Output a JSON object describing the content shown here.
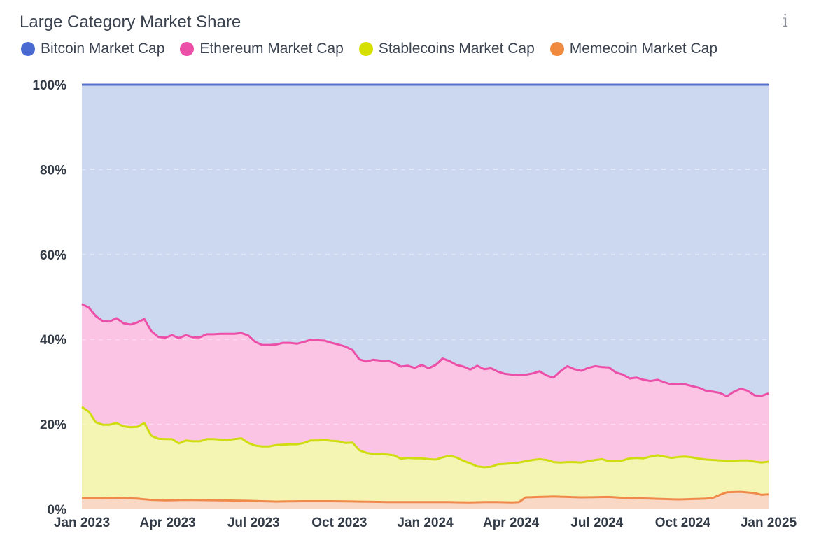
{
  "header": {
    "title": "Large Category Market Share",
    "info_icon": "info-icon",
    "info_glyph": "i"
  },
  "colors": {
    "bitcoin_line": "#5470c6",
    "bitcoin_fill": "#ccd8f0",
    "ethereum_line": "#ec4fa7",
    "ethereum_fill": "#fcc4e4",
    "stablecoins_line": "#cfdc10",
    "stablecoins_fill": "#f4f5b3",
    "memecoin_line": "#f08a4b",
    "memecoin_fill": "#f9d8c6",
    "legend_bitcoin": "#4a6ad1",
    "legend_ethereum": "#ec4fa7",
    "legend_stablecoins": "#d6e000",
    "legend_memecoin": "#f08a3e"
  },
  "chart_data": {
    "type": "area",
    "stacked": true,
    "normalized": true,
    "title": "Large Category Market Share",
    "x_start": "Jan 2023",
    "x_end": "Jan 2025",
    "x_ticks": [
      "Jan 2023",
      "Apr 2023",
      "Jul 2023",
      "Oct 2023",
      "Jan 2024",
      "Apr 2024",
      "Jul 2024",
      "Oct 2024",
      "Jan 2025"
    ],
    "y_ticks": [
      "0%",
      "20%",
      "40%",
      "60%",
      "80%",
      "100%"
    ],
    "ylim": [
      0,
      100
    ],
    "legend_position": "top-left",
    "series": [
      {
        "name": "Bitcoin Market Cap",
        "key": "bitcoin",
        "note": "top band, cumulative always 100%"
      },
      {
        "name": "Ethereum Market Cap",
        "key": "ethereum",
        "cumulative_top": [
          [
            0,
            48.3
          ],
          [
            1,
            47.5
          ],
          [
            2,
            45.5
          ],
          [
            3,
            44.3
          ],
          [
            4,
            44.2
          ],
          [
            5,
            45.0
          ],
          [
            6,
            43.8
          ],
          [
            7,
            43.5
          ],
          [
            8,
            44.0
          ],
          [
            9,
            44.8
          ],
          [
            10,
            42.0
          ],
          [
            11,
            40.6
          ],
          [
            12,
            40.4
          ],
          [
            13,
            41.0
          ],
          [
            14,
            40.3
          ],
          [
            15,
            41.0
          ],
          [
            16,
            40.5
          ],
          [
            17,
            40.5
          ],
          [
            18,
            41.2
          ],
          [
            19,
            41.2
          ],
          [
            20,
            41.3
          ],
          [
            21,
            41.3
          ],
          [
            22,
            41.3
          ],
          [
            23,
            41.5
          ],
          [
            24,
            40.9
          ],
          [
            25,
            39.4
          ],
          [
            26,
            38.7
          ],
          [
            27,
            38.7
          ],
          [
            28,
            38.8
          ],
          [
            29,
            39.2
          ],
          [
            30,
            39.2
          ],
          [
            31,
            39.0
          ],
          [
            32,
            39.4
          ],
          [
            33,
            39.9
          ],
          [
            34,
            39.8
          ],
          [
            35,
            39.7
          ],
          [
            36,
            39.2
          ],
          [
            37,
            38.8
          ],
          [
            38,
            38.3
          ],
          [
            39,
            37.5
          ],
          [
            40,
            35.3
          ],
          [
            41,
            34.8
          ],
          [
            42,
            35.2
          ],
          [
            43,
            35.0
          ],
          [
            44,
            35.0
          ],
          [
            45,
            34.5
          ],
          [
            46,
            33.6
          ],
          [
            47,
            33.8
          ],
          [
            48,
            33.3
          ],
          [
            49,
            34.0
          ],
          [
            50,
            33.2
          ],
          [
            51,
            34.0
          ],
          [
            52,
            35.5
          ],
          [
            53,
            34.9
          ],
          [
            54,
            34.0
          ],
          [
            55,
            33.6
          ],
          [
            56,
            32.9
          ],
          [
            57,
            33.8
          ],
          [
            58,
            33.0
          ],
          [
            59,
            33.2
          ],
          [
            60,
            32.4
          ],
          [
            61,
            31.9
          ],
          [
            62,
            31.7
          ],
          [
            63,
            31.6
          ],
          [
            64,
            31.7
          ],
          [
            65,
            32.0
          ],
          [
            66,
            32.5
          ],
          [
            67,
            31.5
          ],
          [
            68,
            31.0
          ],
          [
            69,
            32.5
          ],
          [
            70,
            33.7
          ],
          [
            71,
            33.0
          ],
          [
            72,
            32.6
          ],
          [
            73,
            33.3
          ],
          [
            74,
            33.7
          ],
          [
            75,
            33.5
          ],
          [
            76,
            33.4
          ],
          [
            77,
            32.2
          ],
          [
            78,
            31.7
          ],
          [
            79,
            30.8
          ],
          [
            80,
            31.0
          ],
          [
            81,
            30.5
          ],
          [
            82,
            30.2
          ],
          [
            83,
            30.5
          ],
          [
            84,
            29.9
          ],
          [
            85,
            29.4
          ],
          [
            86,
            29.5
          ],
          [
            87,
            29.4
          ],
          [
            88,
            29.0
          ],
          [
            89,
            28.6
          ],
          [
            90,
            27.9
          ],
          [
            91,
            27.7
          ],
          [
            92,
            27.4
          ],
          [
            93,
            26.6
          ],
          [
            94,
            27.7
          ],
          [
            95,
            28.4
          ],
          [
            96,
            27.9
          ],
          [
            97,
            26.8
          ],
          [
            98,
            26.7
          ],
          [
            99,
            27.3
          ]
        ]
      },
      {
        "name": "Stablecoins Market Cap",
        "key": "stablecoins",
        "cumulative_top": [
          [
            0,
            24.1
          ],
          [
            1,
            23.0
          ],
          [
            2,
            20.5
          ],
          [
            3,
            19.9
          ],
          [
            4,
            19.9
          ],
          [
            5,
            20.3
          ],
          [
            6,
            19.5
          ],
          [
            7,
            19.3
          ],
          [
            8,
            19.4
          ],
          [
            9,
            20.3
          ],
          [
            10,
            17.3
          ],
          [
            11,
            16.6
          ],
          [
            12,
            16.5
          ],
          [
            13,
            16.5
          ],
          [
            14,
            15.5
          ],
          [
            15,
            16.2
          ],
          [
            16,
            16.0
          ],
          [
            17,
            16.0
          ],
          [
            18,
            16.5
          ],
          [
            19,
            16.5
          ],
          [
            20,
            16.4
          ],
          [
            21,
            16.3
          ],
          [
            22,
            16.5
          ],
          [
            23,
            16.7
          ],
          [
            24,
            15.6
          ],
          [
            25,
            15.0
          ],
          [
            26,
            14.8
          ],
          [
            27,
            14.8
          ],
          [
            28,
            15.1
          ],
          [
            29,
            15.2
          ],
          [
            30,
            15.3
          ],
          [
            31,
            15.3
          ],
          [
            32,
            15.6
          ],
          [
            33,
            16.2
          ],
          [
            34,
            16.2
          ],
          [
            35,
            16.3
          ],
          [
            36,
            16.1
          ],
          [
            37,
            16.0
          ],
          [
            38,
            15.6
          ],
          [
            39,
            15.7
          ],
          [
            40,
            13.9
          ],
          [
            41,
            13.3
          ],
          [
            42,
            13.0
          ],
          [
            43,
            13.0
          ],
          [
            44,
            12.9
          ],
          [
            45,
            12.7
          ],
          [
            46,
            11.9
          ],
          [
            47,
            12.1
          ],
          [
            48,
            12.0
          ],
          [
            49,
            12.0
          ],
          [
            50,
            11.8
          ],
          [
            51,
            11.7
          ],
          [
            52,
            12.2
          ],
          [
            53,
            12.6
          ],
          [
            54,
            12.2
          ],
          [
            55,
            11.4
          ],
          [
            56,
            10.8
          ],
          [
            57,
            10.1
          ],
          [
            58,
            9.9
          ],
          [
            59,
            10.0
          ],
          [
            60,
            10.6
          ],
          [
            61,
            10.7
          ],
          [
            62,
            10.8
          ],
          [
            63,
            11.0
          ],
          [
            64,
            11.3
          ],
          [
            65,
            11.6
          ],
          [
            66,
            11.8
          ],
          [
            67,
            11.6
          ],
          [
            68,
            11.1
          ],
          [
            69,
            11.0
          ],
          [
            70,
            11.1
          ],
          [
            71,
            11.1
          ],
          [
            72,
            11.0
          ],
          [
            73,
            11.3
          ],
          [
            74,
            11.6
          ],
          [
            75,
            11.8
          ],
          [
            76,
            11.3
          ],
          [
            77,
            11.3
          ],
          [
            78,
            11.5
          ],
          [
            79,
            12.0
          ],
          [
            80,
            12.1
          ],
          [
            81,
            12.0
          ],
          [
            82,
            12.4
          ],
          [
            83,
            12.7
          ],
          [
            84,
            12.4
          ],
          [
            85,
            12.1
          ],
          [
            86,
            12.3
          ],
          [
            87,
            12.4
          ],
          [
            88,
            12.2
          ],
          [
            89,
            11.9
          ],
          [
            90,
            11.7
          ],
          [
            91,
            11.6
          ],
          [
            92,
            11.5
          ],
          [
            93,
            11.4
          ],
          [
            94,
            11.4
          ],
          [
            95,
            11.5
          ],
          [
            96,
            11.5
          ],
          [
            97,
            11.2
          ],
          [
            98,
            11.0
          ],
          [
            99,
            11.2
          ]
        ]
      },
      {
        "name": "Memecoin Market Cap",
        "key": "memecoin",
        "cumulative_top": [
          [
            0,
            2.6
          ],
          [
            3,
            2.6
          ],
          [
            5,
            2.7
          ],
          [
            8,
            2.5
          ],
          [
            10,
            2.2
          ],
          [
            12,
            2.1
          ],
          [
            15,
            2.2
          ],
          [
            20,
            2.1
          ],
          [
            24,
            2.0
          ],
          [
            28,
            1.8
          ],
          [
            32,
            1.9
          ],
          [
            36,
            1.9
          ],
          [
            40,
            1.8
          ],
          [
            44,
            1.7
          ],
          [
            48,
            1.7
          ],
          [
            52,
            1.7
          ],
          [
            56,
            1.6
          ],
          [
            58,
            1.7
          ],
          [
            60,
            1.7
          ],
          [
            62,
            1.6
          ],
          [
            63,
            1.7
          ],
          [
            64,
            2.8
          ],
          [
            66,
            2.9
          ],
          [
            68,
            3.0
          ],
          [
            70,
            2.9
          ],
          [
            72,
            2.8
          ],
          [
            76,
            2.9
          ],
          [
            78,
            2.7
          ],
          [
            80,
            2.6
          ],
          [
            82,
            2.5
          ],
          [
            84,
            2.4
          ],
          [
            86,
            2.3
          ],
          [
            88,
            2.4
          ],
          [
            90,
            2.5
          ],
          [
            91,
            2.7
          ],
          [
            92,
            3.4
          ],
          [
            93,
            4.0
          ],
          [
            95,
            4.1
          ],
          [
            97,
            3.8
          ],
          [
            98,
            3.4
          ],
          [
            99,
            3.5
          ]
        ]
      }
    ]
  }
}
